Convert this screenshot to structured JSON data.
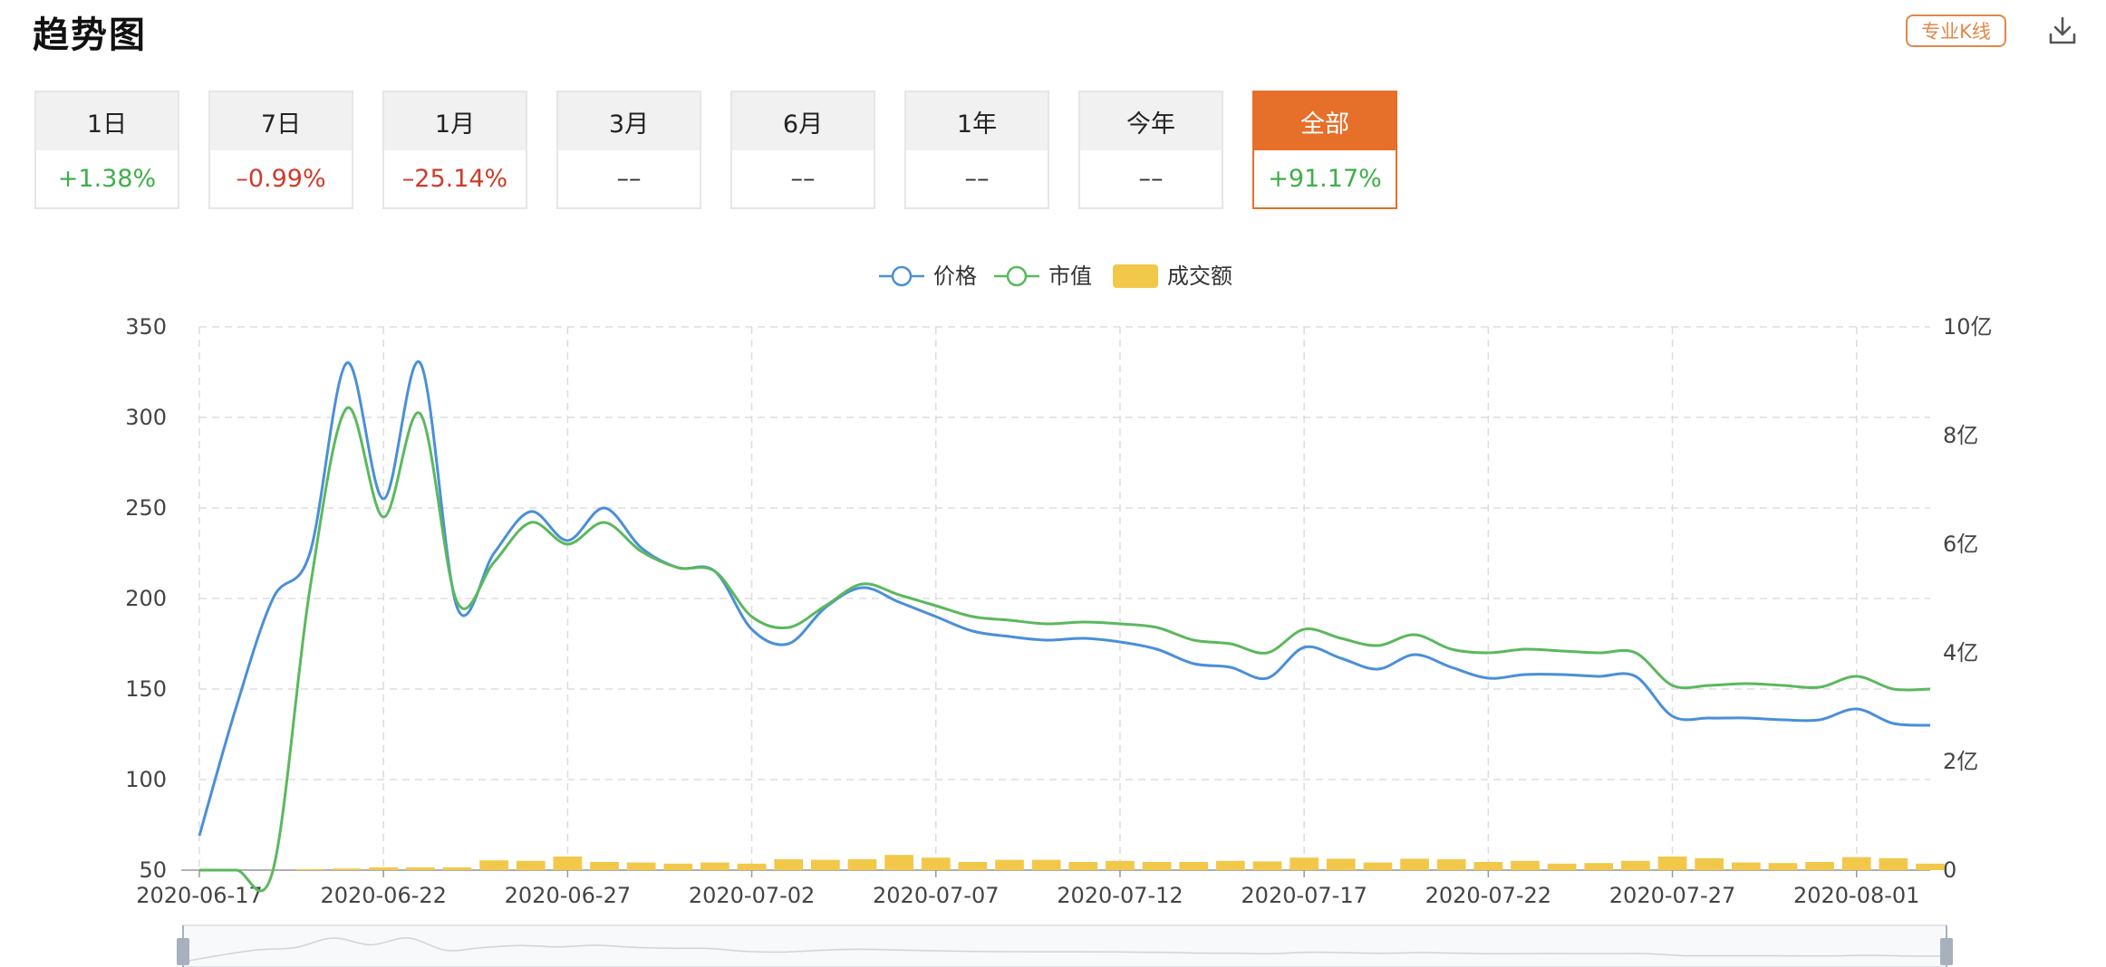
{
  "header": {
    "title": "趋势图",
    "kline_label": "专业K线"
  },
  "period_tabs": [
    {
      "label": "1日",
      "value": "+1.38%",
      "color": "#3fae49"
    },
    {
      "label": "7日",
      "value": "–0.99%",
      "color": "#d03a2b"
    },
    {
      "label": "1月",
      "value": "–25.14%",
      "color": "#d03a2b"
    },
    {
      "label": "3月",
      "value": "––",
      "color": "#333333"
    },
    {
      "label": "6月",
      "value": "––",
      "color": "#333333"
    },
    {
      "label": "1年",
      "value": "––",
      "color": "#333333"
    },
    {
      "label": "今年",
      "value": "––",
      "color": "#333333"
    },
    {
      "label": "全部",
      "value": "+91.17%",
      "color": "#3fae49",
      "active": true
    }
  ],
  "colors": {
    "accent": "#e66f2a",
    "price": "#4a8fd8",
    "market_cap": "#5bb85d",
    "volume": "#f2c84b",
    "grid": "#dddddd",
    "axis_text": "#444444"
  },
  "icons": {
    "download": "download-icon"
  },
  "chart_data": {
    "type": "line",
    "legend": [
      "价格",
      "市值",
      "成交额"
    ],
    "legend_position": "top-center",
    "x": [
      "2020-06-17",
      "2020-06-18",
      "2020-06-19",
      "2020-06-20",
      "2020-06-21",
      "2020-06-22",
      "2020-06-23",
      "2020-06-24",
      "2020-06-25",
      "2020-06-26",
      "2020-06-27",
      "2020-06-28",
      "2020-06-29",
      "2020-06-30",
      "2020-07-01",
      "2020-07-02",
      "2020-07-03",
      "2020-07-04",
      "2020-07-05",
      "2020-07-06",
      "2020-07-07",
      "2020-07-08",
      "2020-07-09",
      "2020-07-10",
      "2020-07-11",
      "2020-07-12",
      "2020-07-13",
      "2020-07-14",
      "2020-07-15",
      "2020-07-16",
      "2020-07-17",
      "2020-07-18",
      "2020-07-19",
      "2020-07-20",
      "2020-07-21",
      "2020-07-22",
      "2020-07-23",
      "2020-07-24",
      "2020-07-25",
      "2020-07-26",
      "2020-07-27",
      "2020-07-28",
      "2020-07-29",
      "2020-07-30",
      "2020-07-31",
      "2020-08-01",
      "2020-08-02",
      "2020-08-03"
    ],
    "x_tick_labels": [
      "2020-06-17",
      "2020-06-22",
      "2020-06-27",
      "2020-07-02",
      "2020-07-07",
      "2020-07-12",
      "2020-07-17",
      "2020-07-22",
      "2020-07-27",
      "2020-08-01"
    ],
    "y_left": {
      "ticks": [
        50,
        100,
        150,
        200,
        250,
        300,
        350
      ],
      "range": [
        50,
        350
      ]
    },
    "y_right": {
      "tick_labels": [
        "0",
        "2亿",
        "4亿",
        "6亿",
        "8亿",
        "10亿"
      ],
      "range": [
        0,
        10
      ],
      "unit": "亿"
    },
    "grid": true,
    "series": [
      {
        "name": "价格",
        "axis": "left",
        "values": [
          69,
          140,
          200,
          225,
          330,
          255,
          330,
          195,
          225,
          248,
          232,
          250,
          228,
          217,
          215,
          183,
          175,
          195,
          206,
          198,
          190,
          182,
          179,
          177,
          178,
          176,
          172,
          164,
          162,
          156,
          173,
          167,
          161,
          169,
          162,
          156,
          158,
          158,
          157,
          157,
          135,
          134,
          134,
          133,
          133,
          139,
          131,
          130
        ]
      },
      {
        "name": "市值",
        "axis": "left",
        "values": [
          50,
          50,
          50,
          205,
          305,
          245,
          302,
          198,
          220,
          242,
          230,
          242,
          226,
          217,
          215,
          190,
          184,
          196,
          208,
          202,
          196,
          190,
          188,
          186,
          187,
          186,
          184,
          177,
          175,
          170,
          183,
          178,
          174,
          180,
          172,
          170,
          172,
          171,
          170,
          170,
          152,
          152,
          153,
          152,
          151,
          157,
          150,
          150
        ]
      },
      {
        "name": "成交额",
        "type": "bar",
        "axis": "right",
        "unit": "亿",
        "values": [
          0.0,
          0.0,
          0.0,
          0.02,
          0.03,
          0.05,
          0.05,
          0.05,
          0.18,
          0.17,
          0.25,
          0.15,
          0.14,
          0.12,
          0.14,
          0.12,
          0.2,
          0.19,
          0.2,
          0.28,
          0.23,
          0.15,
          0.19,
          0.19,
          0.15,
          0.17,
          0.15,
          0.15,
          0.17,
          0.16,
          0.23,
          0.21,
          0.14,
          0.21,
          0.2,
          0.15,
          0.17,
          0.12,
          0.13,
          0.17,
          0.25,
          0.22,
          0.14,
          0.13,
          0.15,
          0.24,
          0.22,
          0.12
        ]
      }
    ]
  }
}
